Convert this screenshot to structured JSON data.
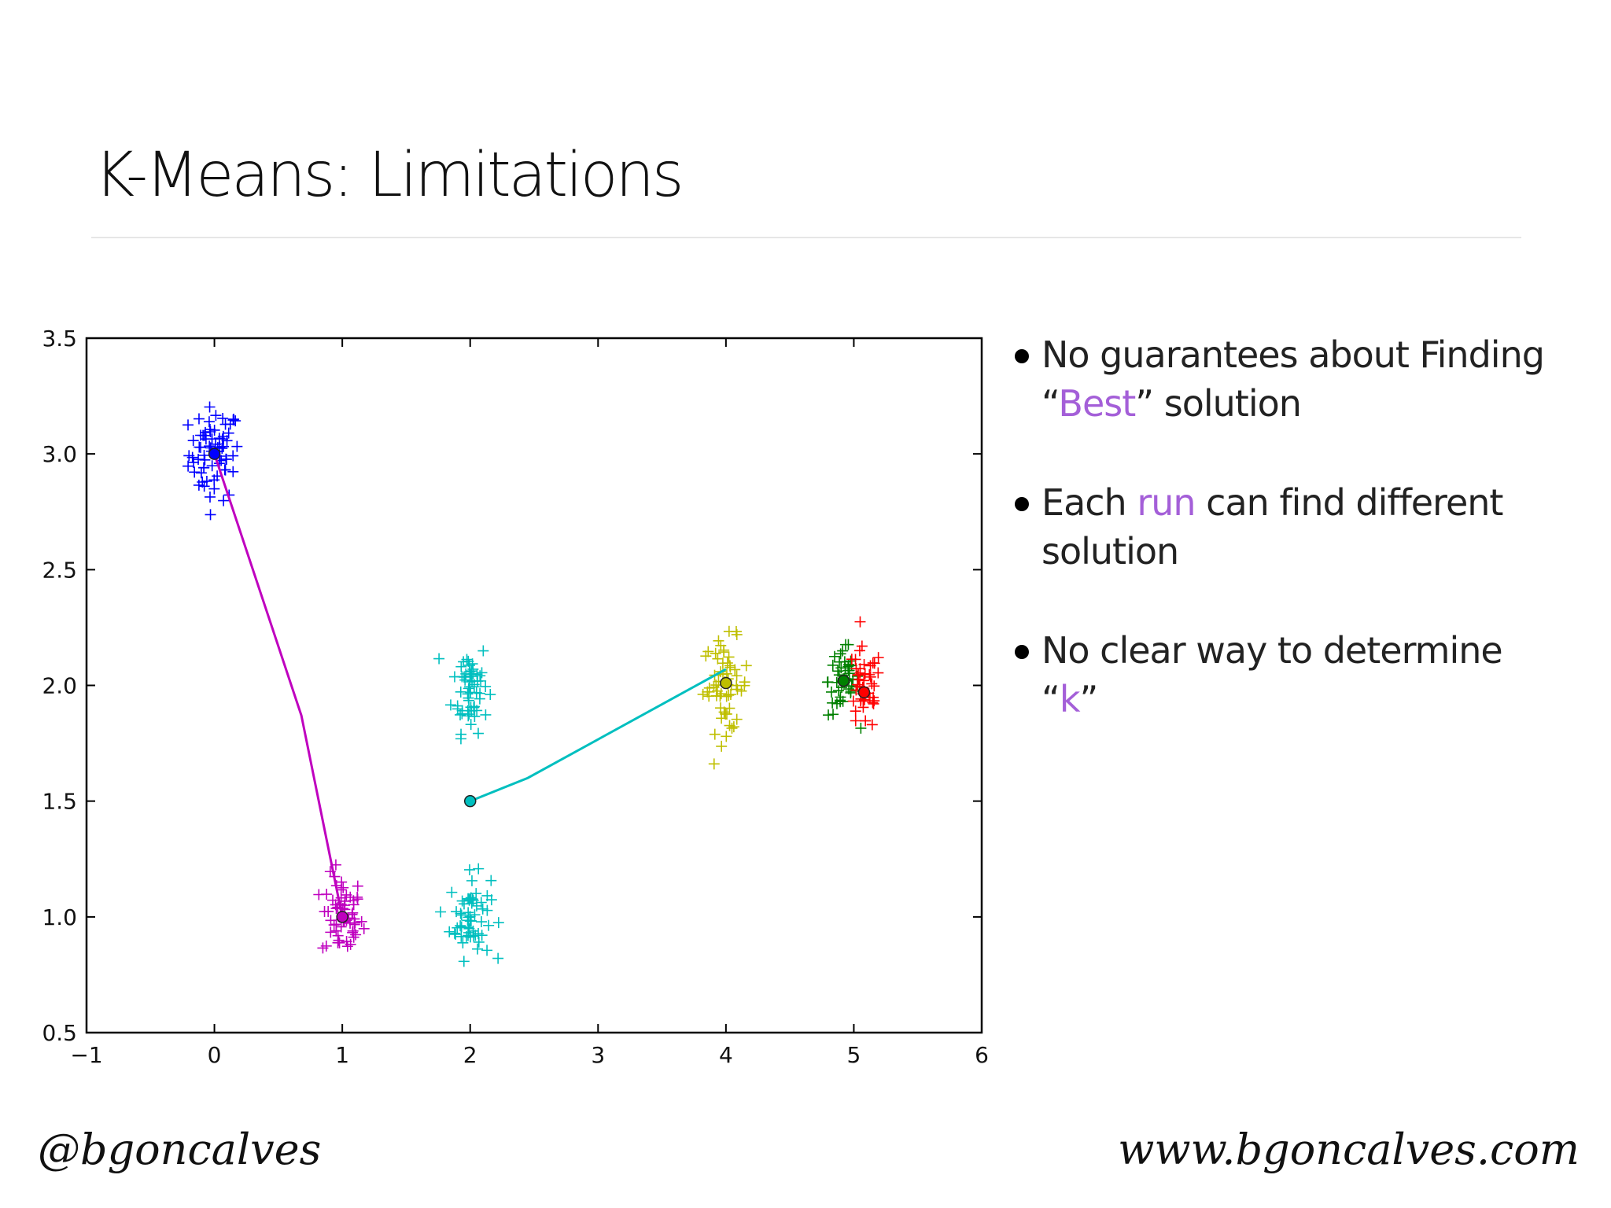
{
  "slide": {
    "title": "K-Means: Limitations",
    "bullets": [
      {
        "parts": [
          "No guarantees about Finding “",
          "Best",
          "” solution"
        ]
      },
      {
        "parts": [
          "Each ",
          "run",
          " can find different solution"
        ]
      },
      {
        "parts": [
          "No clear way to determine “",
          "k",
          "”"
        ]
      }
    ],
    "footer_left": "@bgoncalves",
    "footer_right": "www.bgoncalves.com",
    "highlight_color": "#a45fd8"
  },
  "chart_data": {
    "type": "scatter",
    "xlim": [
      -1,
      6
    ],
    "ylim": [
      0.5,
      3.5
    ],
    "x_ticks": [
      "−1",
      "0",
      "1",
      "2",
      "3",
      "4",
      "5",
      "6"
    ],
    "y_ticks": [
      "0.5",
      "1.0",
      "1.5",
      "2.0",
      "2.5",
      "3.0",
      "3.5"
    ],
    "grid": false,
    "clusters": [
      {
        "color": "#0000ff",
        "center": [
          0,
          3
        ],
        "spread": [
          0.1,
          0.1
        ],
        "n": 70
      },
      {
        "color": "#bf00bf",
        "center": [
          1,
          1
        ],
        "spread": [
          0.08,
          0.09
        ],
        "n": 60
      },
      {
        "color": "#00bfbf",
        "center": [
          2,
          2
        ],
        "spread": [
          0.07,
          0.1
        ],
        "n": 60
      },
      {
        "color": "#00bfbf",
        "center": [
          2,
          1
        ],
        "spread": [
          0.08,
          0.09
        ],
        "n": 60
      },
      {
        "color": "#bfbf00",
        "center": [
          4,
          2
        ],
        "spread": [
          0.09,
          0.1
        ],
        "n": 60
      },
      {
        "color": "#008000",
        "center": [
          4.92,
          2.02
        ],
        "spread": [
          0.06,
          0.08
        ],
        "n": 50
      },
      {
        "color": "#ff0000",
        "center": [
          5.08,
          1.98
        ],
        "spread": [
          0.07,
          0.09
        ],
        "n": 45
      }
    ],
    "centroids": [
      {
        "color": "#0000ff",
        "x": 0,
        "y": 3
      },
      {
        "color": "#bf00bf",
        "x": 1,
        "y": 1
      },
      {
        "color": "#00bfbf",
        "x": 2,
        "y": 1.5
      },
      {
        "color": "#bfbf00",
        "x": 4,
        "y": 2.01
      },
      {
        "color": "#008000",
        "x": 4.92,
        "y": 2.02
      },
      {
        "color": "#ff0000",
        "x": 5.08,
        "y": 1.97
      }
    ],
    "trajectories": [
      {
        "color": "#bf00bf",
        "points": [
          [
            0,
            3
          ],
          [
            0.68,
            1.87
          ],
          [
            1,
            1
          ]
        ]
      },
      {
        "color": "#00bfbf",
        "points": [
          [
            2,
            1.5
          ],
          [
            2.45,
            1.6
          ],
          [
            4,
            2.07
          ]
        ]
      }
    ]
  }
}
